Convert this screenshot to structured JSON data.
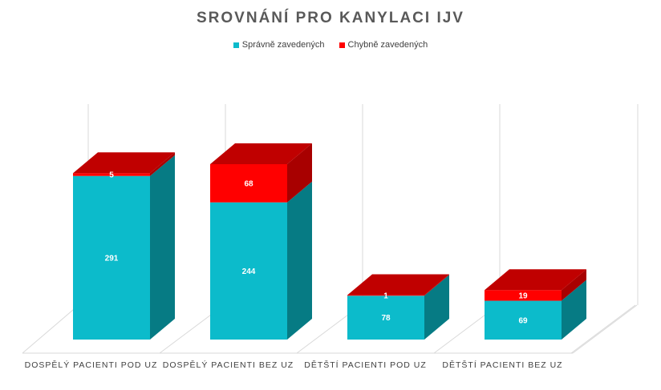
{
  "chart_data": {
    "type": "bar",
    "stacked": true,
    "three_d": true,
    "title": "SROVNÁNÍ PRO KANYLACI IJV",
    "legend_position": "top",
    "grid": true,
    "categories": [
      "DOSPĚLÝ PACIENTI POD UZ",
      "DOSPĚLÝ PACIENTI BEZ UZ",
      "DĚTŠTÍ PACIENTI POD UZ",
      "DĚTŠTÍ PACIENTI BEZ UZ"
    ],
    "series": [
      {
        "name": "Správně zavedených",
        "values": [
          291,
          244,
          78,
          69
        ],
        "color": "#0CBBCB",
        "side_color": "#067B84",
        "top_color": "#0BA9B7"
      },
      {
        "name": "Chybně zavedených",
        "values": [
          5,
          68,
          1,
          19
        ],
        "color": "#FF0000",
        "side_color": "#A80000",
        "top_color": "#C00000"
      }
    ],
    "ylim": [
      0,
      340
    ]
  }
}
